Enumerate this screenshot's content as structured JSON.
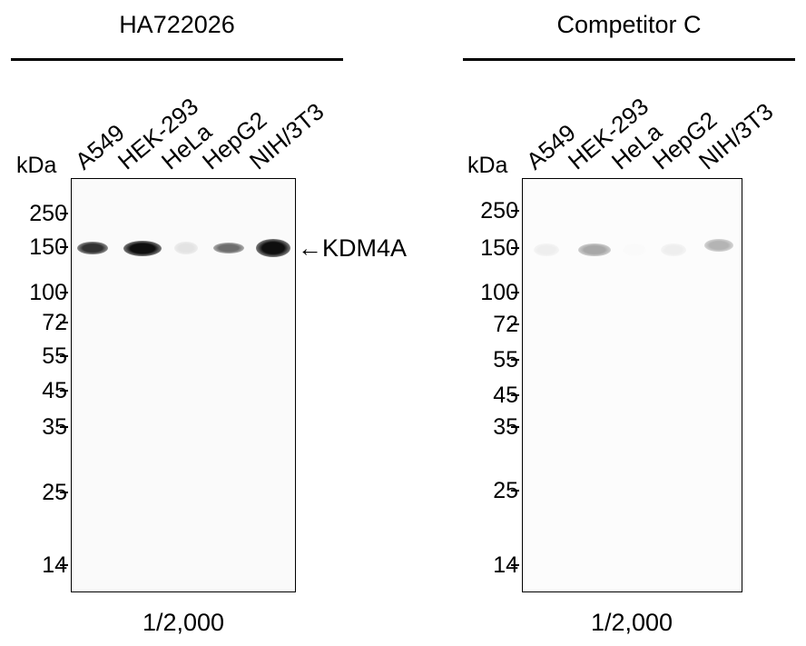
{
  "panels": [
    {
      "title": "HA722026",
      "kda_label": "kDa",
      "lanes": [
        "A549",
        "HEK-293",
        "HeLa",
        "HepG2",
        "NIH/3T3"
      ],
      "markers": [
        "250",
        "150",
        "100",
        "72",
        "55",
        "45",
        "35",
        "25",
        "14"
      ],
      "band_intensity": [
        0.85,
        1.0,
        0.1,
        0.6,
        1.0
      ],
      "target_label": "←KDM4A",
      "dilution": "1/2,000"
    },
    {
      "title": "Competitor C",
      "kda_label": "kDa",
      "lanes": [
        "A549",
        "HEK-293",
        "HeLa",
        "HepG2",
        "NIH/3T3"
      ],
      "markers": [
        "250",
        "150",
        "100",
        "72",
        "55",
        "45",
        "35",
        "25",
        "14"
      ],
      "band_intensity": [
        0.05,
        0.35,
        0.0,
        0.05,
        0.3
      ],
      "dilution": "1/2,000"
    }
  ]
}
